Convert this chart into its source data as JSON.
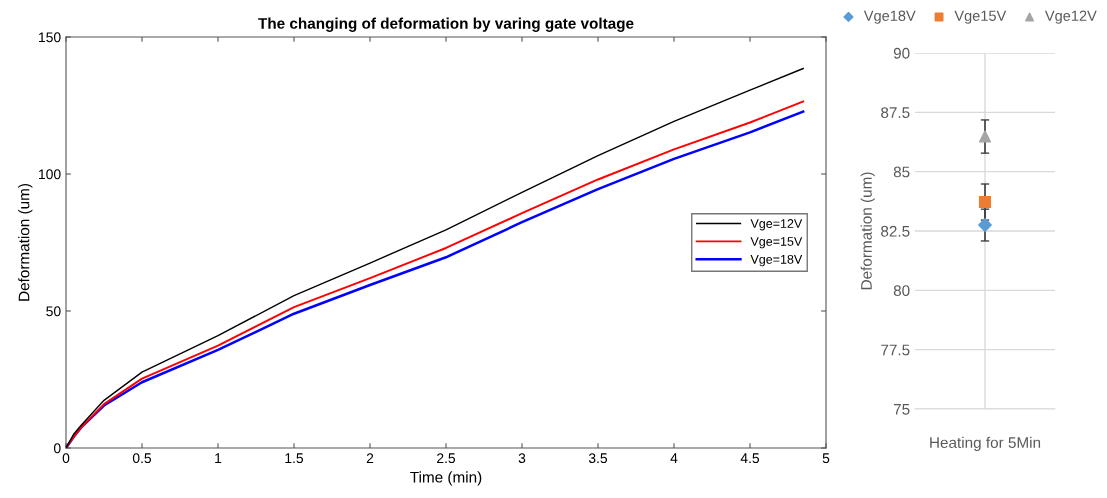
{
  "chart_data": [
    {
      "type": "line",
      "title": "The changing of deformation by varing gate voltage",
      "xlabel": "Time (min)",
      "ylabel": "Deformation (um)",
      "xlim": [
        0,
        5
      ],
      "xticks": [
        0,
        0.5,
        1,
        1.5,
        2,
        2.5,
        3,
        3.5,
        4,
        4.5,
        5
      ],
      "ylim": [
        0,
        150
      ],
      "yticks": [
        0,
        50,
        100,
        150
      ],
      "x": [
        0,
        0.05,
        0.1,
        0.25,
        0.5,
        1,
        1.5,
        2,
        2.5,
        3,
        3.5,
        4,
        4.5,
        4.85
      ],
      "series": [
        {
          "name": "Vge=12V",
          "color": "#000000",
          "values": [
            0,
            5,
            8.3,
            17.4,
            27.7,
            41,
            55.6,
            67.5,
            79.6,
            93.3,
            106.7,
            119.2,
            130.6,
            138.5
          ]
        },
        {
          "name": "Vge=15V",
          "color": "#ff0000",
          "values": [
            0,
            4,
            7.5,
            16,
            25.3,
            37.4,
            51.4,
            62,
            73,
            85.7,
            98,
            109,
            118.8,
            126.5
          ]
        },
        {
          "name": "Vge=18V",
          "color": "#0000ff",
          "values": [
            0,
            4,
            7.5,
            15.5,
            24,
            35.8,
            49,
            59.5,
            69.6,
            82.4,
            94.5,
            105.5,
            115.2,
            122.8
          ]
        }
      ],
      "legend": "right",
      "grid": false
    },
    {
      "type": "scatter",
      "ylabel": "Deformation (um)",
      "categories": [
        "Heating for 5Min"
      ],
      "ylim": [
        75,
        90
      ],
      "yticks": [
        75,
        77.5,
        80,
        82.5,
        85,
        87.5,
        90
      ],
      "series": [
        {
          "name": "Vge18V",
          "color": "#5b9bd5",
          "marker": "diamond",
          "values": [
            82.75
          ],
          "errors": [
            0.67
          ]
        },
        {
          "name": "Vge15V",
          "color": "#ed7d31",
          "marker": "square",
          "values": [
            83.72
          ],
          "errors": [
            0.76
          ]
        },
        {
          "name": "Vge12V",
          "color": "#a5a5a5",
          "marker": "triangle",
          "values": [
            86.48
          ],
          "errors": [
            0.7
          ]
        }
      ],
      "legend": "top",
      "grid": true
    }
  ]
}
